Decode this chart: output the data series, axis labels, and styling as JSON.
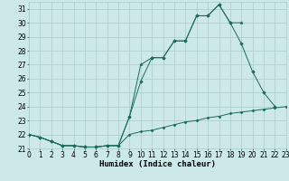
{
  "xlabel": "Humidex (Indice chaleur)",
  "bg_color": "#cce8e8",
  "grid_color": "#aacccc",
  "line_color": "#1a6b5a",
  "x_values": [
    0,
    1,
    2,
    3,
    4,
    5,
    6,
    7,
    8,
    9,
    10,
    11,
    12,
    13,
    14,
    15,
    16,
    17,
    18,
    19,
    20,
    21,
    22,
    23
  ],
  "line1": [
    22.0,
    21.8,
    21.5,
    21.2,
    21.2,
    21.1,
    21.1,
    21.2,
    21.2,
    23.3,
    27.0,
    27.5,
    27.5,
    28.7,
    28.7,
    30.5,
    30.5,
    31.3,
    30.0,
    30.0,
    null,
    null,
    null,
    null
  ],
  "line2": [
    22.0,
    21.8,
    21.5,
    21.2,
    21.2,
    21.1,
    21.1,
    21.2,
    21.2,
    23.3,
    25.8,
    27.5,
    27.5,
    28.7,
    28.7,
    30.5,
    30.5,
    31.3,
    30.0,
    28.5,
    26.5,
    25.0,
    24.0,
    null
  ],
  "line3": [
    22.0,
    21.8,
    21.5,
    21.2,
    21.2,
    21.1,
    21.1,
    21.2,
    21.2,
    22.0,
    22.2,
    22.3,
    22.5,
    22.7,
    22.9,
    23.0,
    23.2,
    23.3,
    23.5,
    23.6,
    23.7,
    23.8,
    23.9,
    24.0
  ],
  "xlim": [
    0,
    23
  ],
  "ylim": [
    21.0,
    31.5
  ],
  "yticks": [
    21,
    22,
    23,
    24,
    25,
    26,
    27,
    28,
    29,
    30,
    31
  ],
  "xticks": [
    0,
    1,
    2,
    3,
    4,
    5,
    6,
    7,
    8,
    9,
    10,
    11,
    12,
    13,
    14,
    15,
    16,
    17,
    18,
    19,
    20,
    21,
    22,
    23
  ],
  "label_fontsize": 6.5,
  "tick_fontsize": 5.5
}
